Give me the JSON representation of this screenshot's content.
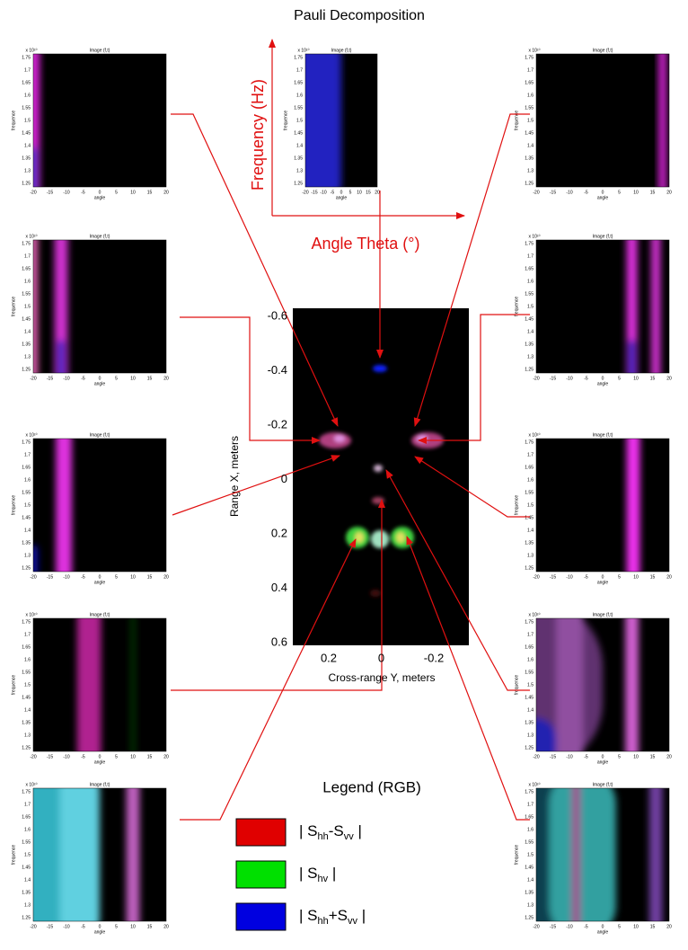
{
  "title": "Pauli Decomposition",
  "small_axes": {
    "title": "Image (f,t)",
    "multiplier": "x 10¹⁰",
    "yticks": [
      1.75,
      1.7,
      1.65,
      1.6,
      1.55,
      1.5,
      1.45,
      1.4,
      1.35,
      1.3,
      1.25
    ],
    "xticks": [
      -20,
      -15,
      -10,
      -5,
      0,
      5,
      10,
      15,
      20
    ],
    "xlabel": "angle",
    "ylabel": "frequence"
  },
  "axis_arrows": {
    "y_label": "Frequency (Hz)",
    "x_label": "Angle Theta (°)"
  },
  "main_image": {
    "yticks": [
      -0.6,
      -0.4,
      -0.2,
      0,
      0.2,
      0.4,
      0.6
    ],
    "xticks": [
      0.2,
      0,
      -0.2
    ],
    "ylabel": "Range X, meters",
    "xlabel": "Cross-range Y, meters"
  },
  "legend": {
    "title": "Legend (RGB)",
    "items": [
      {
        "color": "#e00000",
        "parts": [
          "| S",
          "hh",
          "-S",
          "vv",
          " |"
        ]
      },
      {
        "color": "#00e000",
        "parts": [
          "| S",
          "hv",
          " |"
        ]
      },
      {
        "color": "#0000e0",
        "parts": [
          "| S",
          "hh",
          "+S",
          "vv",
          " |"
        ]
      }
    ]
  }
}
